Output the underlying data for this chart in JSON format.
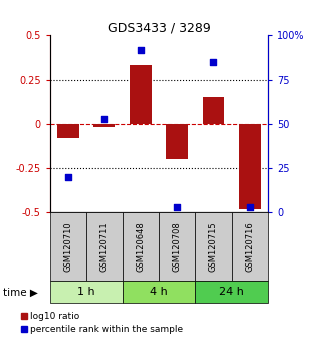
{
  "title": "GDS3433 / 3289",
  "samples": [
    "GSM120710",
    "GSM120711",
    "GSM120648",
    "GSM120708",
    "GSM120715",
    "GSM120716"
  ],
  "log10_ratio": [
    -0.08,
    -0.02,
    0.33,
    -0.2,
    0.15,
    -0.48
  ],
  "percentile_rank": [
    20,
    53,
    92,
    3,
    85,
    3
  ],
  "time_groups": [
    {
      "label": "1 h",
      "start": 0,
      "end": 2,
      "color": "#c8f0b0"
    },
    {
      "label": "4 h",
      "start": 2,
      "end": 4,
      "color": "#90e060"
    },
    {
      "label": "24 h",
      "start": 4,
      "end": 6,
      "color": "#50cc50"
    }
  ],
  "bar_color": "#aa1111",
  "point_color": "#0000cc",
  "ylim_left": [
    -0.5,
    0.5
  ],
  "ylim_right": [
    0,
    100
  ],
  "yticks_left": [
    -0.5,
    -0.25,
    0,
    0.25,
    0.5
  ],
  "yticks_right": [
    0,
    25,
    50,
    75,
    100
  ],
  "hlines": [
    0.25,
    -0.25
  ],
  "zero_line_color": "#cc0000",
  "sample_box_color": "#cccccc",
  "bar_width": 0.6,
  "fig_width": 3.21,
  "fig_height": 3.54,
  "dpi": 100
}
